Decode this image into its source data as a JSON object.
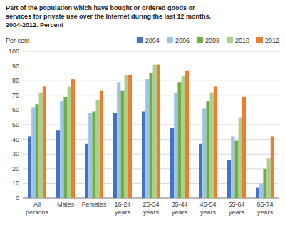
{
  "chart_data": {
    "type": "bar",
    "title": "Part of the population which have bought or ordered goods or\nservices for private use over the Internet during the last 12 months.\n2004-2012. Percent",
    "y_label": "Per cent",
    "categories": [
      "All\npersons",
      "Males",
      "Females",
      "16-24\nyears",
      "25-34\nyears",
      "35-44\nyears",
      "45-54\nyears",
      "55-64\nyears",
      "65-74\nyears"
    ],
    "series": [
      {
        "name": "2004",
        "color": "#4472C4",
        "values": [
          42,
          46,
          37,
          58,
          59,
          48,
          37,
          26,
          7
        ]
      },
      {
        "name": "2006",
        "color": "#9DC3E6",
        "values": [
          62,
          66,
          58,
          79,
          81,
          72,
          61,
          42,
          10
        ]
      },
      {
        "name": "2008",
        "color": "#70AD47",
        "values": [
          64,
          69,
          59,
          73,
          85,
          79,
          66,
          39,
          20
        ]
      },
      {
        "name": "2010",
        "color": "#A9D18E",
        "values": [
          72,
          76,
          67,
          84,
          91,
          83,
          72,
          55,
          27
        ]
      },
      {
        "name": "2012",
        "color": "#ED7D31",
        "values": [
          76,
          81,
          73,
          84,
          91,
          87,
          76,
          69,
          42
        ]
      }
    ],
    "ylim": [
      0,
      100
    ],
    "yticks": [
      0,
      10,
      20,
      30,
      40,
      50,
      60,
      70,
      80,
      90,
      100
    ],
    "grid": true,
    "legend": "top"
  }
}
